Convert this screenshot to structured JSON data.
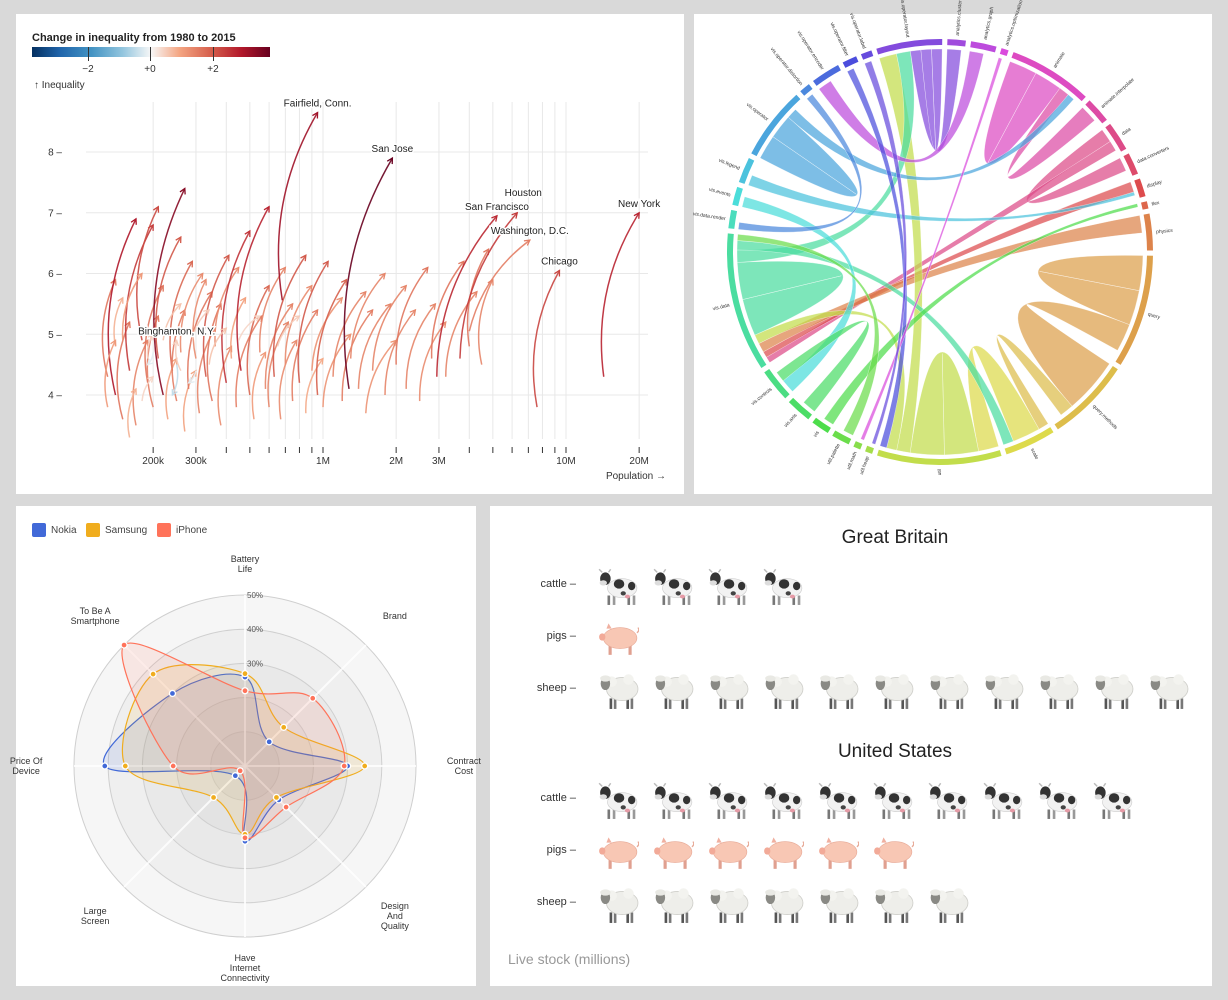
{
  "inequality": {
    "legend_title": "Change in inequality from 1980 to 2015",
    "legend_ticks": [
      "−2",
      "+0",
      "+2"
    ],
    "legend_tick_values": [
      -2,
      0,
      2
    ],
    "y_axis_label": "↑ Inequality",
    "x_axis_label": "Population →",
    "chart_data": {
      "type": "arrow-scatter",
      "x_scale": "log",
      "x_ticks": [
        {
          "v": 0.2,
          "label": "200k"
        },
        {
          "v": 0.3,
          "label": "300k"
        },
        {
          "v": 1,
          "label": "1M"
        },
        {
          "v": 2,
          "label": "2M"
        },
        {
          "v": 3,
          "label": "3M"
        },
        {
          "v": 10,
          "label": "10M"
        },
        {
          "v": 20,
          "label": "20M"
        }
      ],
      "x_minor_ticks": [
        0.4,
        0.5,
        0.6,
        0.7,
        0.8,
        0.9,
        4,
        5,
        6,
        7,
        8,
        9
      ],
      "y_ticks": [
        4,
        5,
        6,
        7,
        8
      ],
      "ylim": [
        3.3,
        8.8
      ],
      "color_domain": [
        -3.8,
        3.8
      ],
      "labeled": [
        {
          "name": "Fairfield, Conn.",
          "p1": 0.68,
          "i1": 5.56,
          "p2": 0.95,
          "i2": 8.65
        },
        {
          "name": "San Jose",
          "p1": 1.28,
          "i1": 4.1,
          "p2": 1.93,
          "i2": 7.9
        },
        {
          "name": "San Francisco",
          "p1": 2.94,
          "i1": 4.3,
          "p2": 5.2,
          "i2": 6.95
        },
        {
          "name": "Houston",
          "p1": 3.66,
          "i1": 4.6,
          "p2": 6.3,
          "i2": 7.0
        },
        {
          "name": "Washington, D.C.",
          "p1": 4.0,
          "i1": 5.05,
          "p2": 7.1,
          "i2": 6.55
        },
        {
          "name": "Chicago",
          "p1": 7.6,
          "i1": 3.8,
          "p2": 9.4,
          "i2": 6.05
        },
        {
          "name": "New York",
          "p1": 14.3,
          "i1": 4.3,
          "p2": 20.0,
          "i2": 7.0
        },
        {
          "name": "Binghamton, N.Y.",
          "p1": 0.26,
          "i1": 4.4,
          "p2": 0.25,
          "i2": 4.9
        }
      ],
      "arrows": [
        [
          0.13,
          4.3,
          0.14,
          5.9
        ],
        [
          0.14,
          4.0,
          0.17,
          6.9
        ],
        [
          0.15,
          3.6,
          0.16,
          5.2
        ],
        [
          0.14,
          4.8,
          0.15,
          5.6
        ],
        [
          0.16,
          4.4,
          0.2,
          6.8
        ],
        [
          0.17,
          3.5,
          0.19,
          4.9
        ],
        [
          0.18,
          4.9,
          0.21,
          7.1
        ],
        [
          0.19,
          4.2,
          0.22,
          5.8
        ],
        [
          0.2,
          3.8,
          0.21,
          5.3
        ],
        [
          0.21,
          4.6,
          0.26,
          6.6
        ],
        [
          0.22,
          4.0,
          0.27,
          7.4
        ],
        [
          0.23,
          3.6,
          0.25,
          4.6
        ],
        [
          0.24,
          4.4,
          0.29,
          6.2
        ],
        [
          0.25,
          3.9,
          0.27,
          5.4
        ],
        [
          0.26,
          4.7,
          0.32,
          6.0
        ],
        [
          0.27,
          3.4,
          0.3,
          4.4
        ],
        [
          0.28,
          4.1,
          0.35,
          5.7
        ],
        [
          0.3,
          4.6,
          0.33,
          5.9
        ],
        [
          0.31,
          3.7,
          0.36,
          5.1
        ],
        [
          0.33,
          4.3,
          0.41,
          6.3
        ],
        [
          0.35,
          3.9,
          0.38,
          5.5
        ],
        [
          0.36,
          4.8,
          0.45,
          6.1
        ],
        [
          0.38,
          3.5,
          0.42,
          4.8
        ],
        [
          0.4,
          4.2,
          0.5,
          6.7
        ],
        [
          0.42,
          4.6,
          0.48,
          5.6
        ],
        [
          0.44,
          3.8,
          0.56,
          5.3
        ],
        [
          0.46,
          4.4,
          0.6,
          7.1
        ],
        [
          0.5,
          4.0,
          0.6,
          5.8
        ],
        [
          0.52,
          3.6,
          0.58,
          4.7
        ],
        [
          0.55,
          4.7,
          0.7,
          6.1
        ],
        [
          0.58,
          4.1,
          0.75,
          5.5
        ],
        [
          0.6,
          3.8,
          0.72,
          5.2
        ],
        [
          0.63,
          4.3,
          0.85,
          6.3
        ],
        [
          0.67,
          3.6,
          0.78,
          4.9
        ],
        [
          0.7,
          4.5,
          0.9,
          5.8
        ],
        [
          0.75,
          3.9,
          0.95,
          5.4
        ],
        [
          0.8,
          4.2,
          1.05,
          6.2
        ],
        [
          0.85,
          3.7,
          1.0,
          4.6
        ],
        [
          0.9,
          4.4,
          1.2,
          5.6
        ],
        [
          0.95,
          4.0,
          1.25,
          5.9
        ],
        [
          1.0,
          3.8,
          1.3,
          5.0
        ],
        [
          1.1,
          4.3,
          1.5,
          5.7
        ],
        [
          1.2,
          3.9,
          1.6,
          5.4
        ],
        [
          1.3,
          4.6,
          1.8,
          6.0
        ],
        [
          1.4,
          4.1,
          1.9,
          5.5
        ],
        [
          1.5,
          3.7,
          2.0,
          4.9
        ],
        [
          1.6,
          4.4,
          2.2,
          5.8
        ],
        [
          1.8,
          4.0,
          2.4,
          5.4
        ],
        [
          2.0,
          4.5,
          2.7,
          6.1
        ],
        [
          2.2,
          4.1,
          2.9,
          5.5
        ],
        [
          2.5,
          3.9,
          3.2,
          5.2
        ],
        [
          2.8,
          4.6,
          3.8,
          6.2
        ],
        [
          3.2,
          4.3,
          4.3,
          5.7
        ],
        [
          4.0,
          4.8,
          4.8,
          6.4
        ],
        [
          4.5,
          4.5,
          5.0,
          5.9
        ],
        [
          0.13,
          3.8,
          0.14,
          4.9
        ],
        [
          0.15,
          4.9,
          0.18,
          6.0
        ],
        [
          0.16,
          3.3,
          0.17,
          4.1
        ],
        [
          0.19,
          4.6,
          0.2,
          5.0
        ],
        [
          0.22,
          4.9,
          0.26,
          5.5
        ],
        [
          0.29,
          4.9,
          0.34,
          5.4
        ],
        [
          0.34,
          4.5,
          0.4,
          5.1
        ],
        [
          0.45,
          4.9,
          0.55,
          5.3
        ],
        [
          0.65,
          4.8,
          0.8,
          5.3
        ],
        [
          0.18,
          3.9,
          0.2,
          4.3
        ],
        [
          0.25,
          4.5,
          0.24,
          4.0
        ],
        [
          0.2,
          4.7,
          0.19,
          4.5
        ],
        [
          0.3,
          4.4,
          0.28,
          4.2
        ]
      ]
    }
  },
  "chord": {
    "chart_data": {
      "type": "chord",
      "groups": [
        {
          "name": "analytics.cluster",
          "value": 5
        },
        {
          "name": "analytics.graph",
          "value": 7
        },
        {
          "name": "analytics.optimization",
          "value": 2
        },
        {
          "name": "animate",
          "value": 23
        },
        {
          "name": "animate.interpolate",
          "value": 7
        },
        {
          "name": "data",
          "value": 8
        },
        {
          "name": "data.converters",
          "value": 6
        },
        {
          "name": "display",
          "value": 5
        },
        {
          "name": "flex",
          "value": 2
        },
        {
          "name": "physics",
          "value": 10
        },
        {
          "name": "query",
          "value": 31
        },
        {
          "name": "query.methods",
          "value": 23
        },
        {
          "name": "scale",
          "value": 14
        },
        {
          "name": "util",
          "value": 34
        },
        {
          "name": "util.heap",
          "value": 2
        },
        {
          "name": "util.math",
          "value": 2
        },
        {
          "name": "util.palette",
          "value": 5
        },
        {
          "name": "vis",
          "value": 5
        },
        {
          "name": "vis.axis",
          "value": 7
        },
        {
          "name": "vis.controls",
          "value": 9
        },
        {
          "name": "vis.data",
          "value": 38
        },
        {
          "name": "vis.data.render",
          "value": 5
        },
        {
          "name": "vis.events",
          "value": 5
        },
        {
          "name": "vis.legend",
          "value": 7
        },
        {
          "name": "vis.operator",
          "value": 20
        },
        {
          "name": "vis.operator.distortion",
          "value": 3
        },
        {
          "name": "vis.operator.encoder",
          "value": 8
        },
        {
          "name": "vis.operator.filter",
          "value": 4
        },
        {
          "name": "vis.operator.label",
          "value": 3
        },
        {
          "name": "vis.operator.layout",
          "value": 18
        }
      ],
      "chords": [
        [
          "animate",
          "animate",
          8,
          8
        ],
        [
          "animate.interpolate",
          "animate",
          5,
          3
        ],
        [
          "data",
          "data.converters",
          4,
          4
        ],
        [
          "data",
          "vis.data",
          3,
          2
        ],
        [
          "display",
          "vis.data",
          3,
          2
        ],
        [
          "physics",
          "vis.data",
          5,
          3
        ],
        [
          "query",
          "query",
          10,
          10
        ],
        [
          "query",
          "query.methods",
          8,
          16
        ],
        [
          "query.methods",
          "scale",
          4,
          3
        ],
        [
          "scale",
          "util",
          8,
          6
        ],
        [
          "util",
          "util",
          10,
          10
        ],
        [
          "util",
          "vis.operator.layout",
          4,
          5
        ],
        [
          "util",
          "vis.data",
          3,
          3
        ],
        [
          "vis.data",
          "vis.data",
          12,
          12
        ],
        [
          "vis.data",
          "vis.operator.layout",
          4,
          4
        ],
        [
          "vis.data",
          "scale",
          3,
          3
        ],
        [
          "vis.operator",
          "vis.operator",
          7,
          7
        ],
        [
          "vis.operator",
          "animate",
          3,
          2
        ],
        [
          "vis.operator.layout",
          "analytics.cluster",
          3,
          4
        ],
        [
          "vis.operator.layout",
          "vis.operator.layout",
          3,
          3
        ],
        [
          "vis.legend",
          "display",
          3,
          1
        ],
        [
          "vis.events",
          "vis.controls",
          3,
          4
        ],
        [
          "vis.axis",
          "vis.controls",
          4,
          3
        ],
        [
          "vis",
          "flex",
          3,
          1
        ],
        [
          "util.palette",
          "vis.data",
          3,
          2
        ],
        [
          "analytics.graph",
          "vis.operator.encoder",
          4,
          4
        ],
        [
          "vis.operator.filter",
          "util",
          2,
          2
        ],
        [
          "vis.operator.distortion",
          "vis.data.render",
          2,
          2
        ],
        [
          "analytics.optimization",
          "util.math",
          1,
          1
        ],
        [
          "vis.operator.label",
          "util.heap",
          2,
          1
        ]
      ]
    }
  },
  "radar": {
    "chart_data": {
      "type": "radar",
      "axes": [
        "Battery Life",
        "Brand",
        "Contract Cost",
        "Design And Quality",
        "Have Internet Connectivity",
        "Large Screen",
        "Price Of Device",
        "To Be A Smartphone"
      ],
      "axis_label_lines": [
        [
          "Battery",
          "Life"
        ],
        [
          "Brand"
        ],
        [
          "Contract",
          "Cost"
        ],
        [
          "Design",
          "And",
          "Quality"
        ],
        [
          "Have",
          "Internet",
          "Connectivity"
        ],
        [
          "Large",
          "Screen"
        ],
        [
          "Price Of",
          "Device"
        ],
        [
          "To Be A",
          "Smartphone"
        ]
      ],
      "rlim": [
        0,
        50
      ],
      "ring_ticks": [
        {
          "v": 30,
          "label": "30%"
        },
        {
          "v": 40,
          "label": "40%"
        },
        {
          "v": 50,
          "label": "50%"
        }
      ],
      "rings": [
        10,
        20,
        30,
        40,
        50
      ],
      "series": [
        {
          "name": "Nokia",
          "color": "#4169d8",
          "values": [
            26,
            10,
            30,
            14,
            22,
            4,
            41,
            30
          ]
        },
        {
          "name": "Samsung",
          "color": "#f0ad1e",
          "values": [
            27,
            16,
            35,
            13,
            20,
            13,
            35,
            38
          ]
        },
        {
          "name": "iPhone",
          "color": "#ff735a",
          "values": [
            22,
            28,
            29,
            17,
            21,
            2,
            21,
            50
          ]
        }
      ]
    }
  },
  "livestock": {
    "caption": "Live stock (millions)",
    "chart_data": {
      "type": "pictogram",
      "countries": [
        {
          "name": "Great Britain",
          "rows": [
            {
              "label": "cattle",
              "count": 4
            },
            {
              "label": "pigs",
              "count": 1
            },
            {
              "label": "sheep",
              "count": 11
            }
          ]
        },
        {
          "name": "United States",
          "rows": [
            {
              "label": "cattle",
              "count": 10
            },
            {
              "label": "pigs",
              "count": 6
            },
            {
              "label": "sheep",
              "count": 7
            }
          ]
        }
      ],
      "icons": {
        "cattle": "cow-icon",
        "pigs": "pig-icon",
        "sheep": "sheep-icon"
      }
    }
  }
}
